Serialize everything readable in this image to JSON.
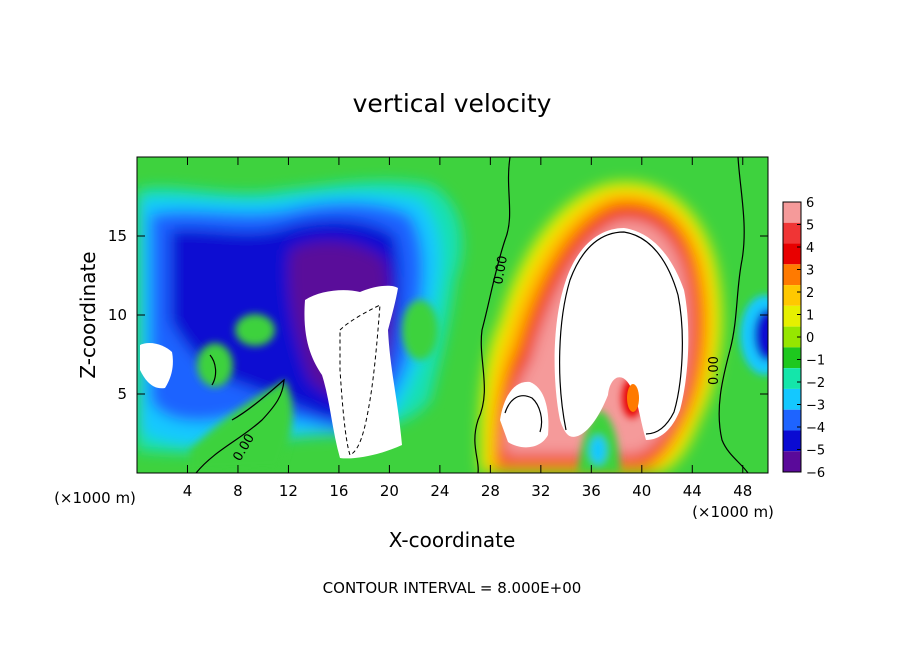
{
  "chart_data": {
    "type": "heatmap",
    "title": "vertical velocity",
    "xlabel": "X-coordinate",
    "ylabel": "Z-coordinate",
    "x_unit": "(×1000 m)",
    "x_unit_right": "(×1000 m)",
    "footer": "CONTOUR INTERVAL = 8.000E+00",
    "xlim": [
      0,
      50
    ],
    "ylim": [
      0,
      20
    ],
    "x_ticks": [
      4,
      8,
      12,
      16,
      20,
      24,
      28,
      32,
      36,
      40,
      44,
      48
    ],
    "x_tick_labels": [
      "4",
      "8",
      "12",
      "16",
      "20",
      "24",
      "28",
      "32",
      "36",
      "40",
      "44",
      "48"
    ],
    "y_ticks": [
      5,
      10,
      15
    ],
    "y_tick_labels": [
      "5",
      "10",
      "15"
    ],
    "colorbar": {
      "levels": [
        6,
        5,
        4,
        3,
        2,
        1,
        0,
        -1,
        -2,
        -3,
        -4,
        -5,
        -6
      ],
      "labels": [
        "6",
        "5",
        "4",
        "3",
        "2",
        "1",
        "0",
        "−1",
        "−2",
        "−3",
        "−4",
        "−5",
        "−6"
      ],
      "colors": [
        "#f59a9a",
        "#f03535",
        "#e80000",
        "#ff7a00",
        "#ffc800",
        "#e6f000",
        "#96e600",
        "#1ec81e",
        "#14e6aa",
        "#14c8ff",
        "#1e64ff",
        "#0a0ad2",
        "#5a0a9a"
      ]
    },
    "contour_labels": [
      "0.00",
      "0.00",
      "0.00"
    ],
    "features": [
      {
        "type": "updraft",
        "center_x": 37,
        "center_z": 10,
        "max_w": 6
      },
      {
        "type": "downdraft",
        "center_x": 17,
        "center_z": 8,
        "min_w": -6
      },
      {
        "type": "downdraft",
        "center_x": 1,
        "center_z": 6.5,
        "min_w": -6
      }
    ]
  }
}
